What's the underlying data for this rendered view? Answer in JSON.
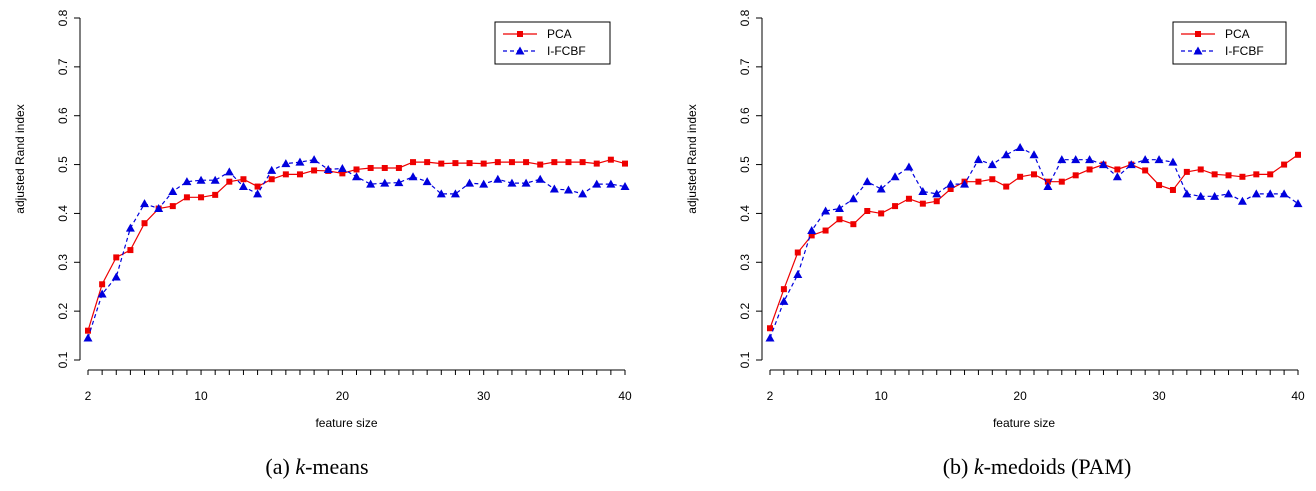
{
  "colors": {
    "pca": "#ee0000",
    "ifcbf": "#0000dd"
  },
  "chart_data": [
    {
      "type": "line",
      "caption_prefix": "(a) ",
      "caption_italic": "k",
      "caption_suffix": "-means",
      "xlabel": "feature size",
      "ylabel": "adjusted Rand index",
      "xlim": [
        2,
        40
      ],
      "ylim": [
        0.1,
        0.8
      ],
      "xticks": [
        "2",
        "10",
        "20",
        "30",
        "40"
      ],
      "yticks": [
        "0.1",
        "0.2",
        "0.3",
        "0.4",
        "0.5",
        "0.6",
        "0.7",
        "0.8"
      ],
      "legend_position": "top-right",
      "x": [
        2,
        3,
        4,
        5,
        6,
        7,
        8,
        9,
        10,
        11,
        12,
        13,
        14,
        15,
        16,
        17,
        18,
        19,
        20,
        21,
        22,
        23,
        24,
        25,
        26,
        27,
        28,
        29,
        30,
        31,
        32,
        33,
        34,
        35,
        36,
        37,
        38,
        39,
        40
      ],
      "series": [
        {
          "name": "PCA",
          "marker": "square",
          "line": "solid",
          "values": [
            0.16,
            0.255,
            0.31,
            0.325,
            0.38,
            0.41,
            0.415,
            0.433,
            0.433,
            0.438,
            0.465,
            0.47,
            0.455,
            0.47,
            0.48,
            0.48,
            0.488,
            0.487,
            0.482,
            0.49,
            0.493,
            0.493,
            0.493,
            0.505,
            0.505,
            0.502,
            0.503,
            0.503,
            0.502,
            0.505,
            0.505,
            0.505,
            0.5,
            0.505,
            0.505,
            0.505,
            0.502,
            0.51,
            0.502
          ]
        },
        {
          "name": "I-FCBF",
          "marker": "triangle",
          "line": "dashed",
          "values": [
            0.145,
            0.235,
            0.27,
            0.37,
            0.42,
            0.41,
            0.445,
            0.465,
            0.468,
            0.468,
            0.485,
            0.455,
            0.44,
            0.488,
            0.502,
            0.505,
            0.51,
            0.49,
            0.492,
            0.475,
            0.46,
            0.462,
            0.463,
            0.475,
            0.465,
            0.44,
            0.44,
            0.462,
            0.46,
            0.47,
            0.462,
            0.462,
            0.47,
            0.45,
            0.448,
            0.44,
            0.46,
            0.46,
            0.455
          ]
        }
      ]
    },
    {
      "type": "line",
      "caption_prefix": "(b) ",
      "caption_italic": "k",
      "caption_suffix": "-medoids (PAM)",
      "xlabel": "feature size",
      "ylabel": "adjusted Rand index",
      "xlim": [
        2,
        40
      ],
      "ylim": [
        0.1,
        0.8
      ],
      "xticks": [
        "2",
        "10",
        "20",
        "30",
        "40"
      ],
      "yticks": [
        "0.1",
        "0.2",
        "0.3",
        "0.4",
        "0.5",
        "0.6",
        "0.7",
        "0.8"
      ],
      "legend_position": "top-right",
      "x": [
        2,
        3,
        4,
        5,
        6,
        7,
        8,
        9,
        10,
        11,
        12,
        13,
        14,
        15,
        16,
        17,
        18,
        19,
        20,
        21,
        22,
        23,
        24,
        25,
        26,
        27,
        28,
        29,
        30,
        31,
        32,
        33,
        34,
        35,
        36,
        37,
        38,
        39,
        40
      ],
      "series": [
        {
          "name": "PCA",
          "marker": "square",
          "line": "solid",
          "values": [
            0.165,
            0.245,
            0.32,
            0.355,
            0.365,
            0.388,
            0.378,
            0.405,
            0.4,
            0.415,
            0.43,
            0.42,
            0.425,
            0.45,
            0.465,
            0.465,
            0.47,
            0.455,
            0.475,
            0.48,
            0.465,
            0.465,
            0.478,
            0.49,
            0.5,
            0.49,
            0.5,
            0.488,
            0.458,
            0.448,
            0.485,
            0.49,
            0.48,
            0.478,
            0.475,
            0.48,
            0.48,
            0.5,
            0.52
          ]
        },
        {
          "name": "I-FCBF",
          "marker": "triangle",
          "line": "dashed",
          "values": [
            0.145,
            0.22,
            0.275,
            0.365,
            0.405,
            0.41,
            0.43,
            0.465,
            0.45,
            0.475,
            0.495,
            0.445,
            0.44,
            0.46,
            0.46,
            0.51,
            0.5,
            0.52,
            0.535,
            0.52,
            0.455,
            0.51,
            0.51,
            0.51,
            0.5,
            0.475,
            0.5,
            0.51,
            0.51,
            0.505,
            0.44,
            0.435,
            0.435,
            0.44,
            0.425,
            0.44,
            0.44,
            0.44,
            0.42
          ]
        }
      ]
    }
  ]
}
